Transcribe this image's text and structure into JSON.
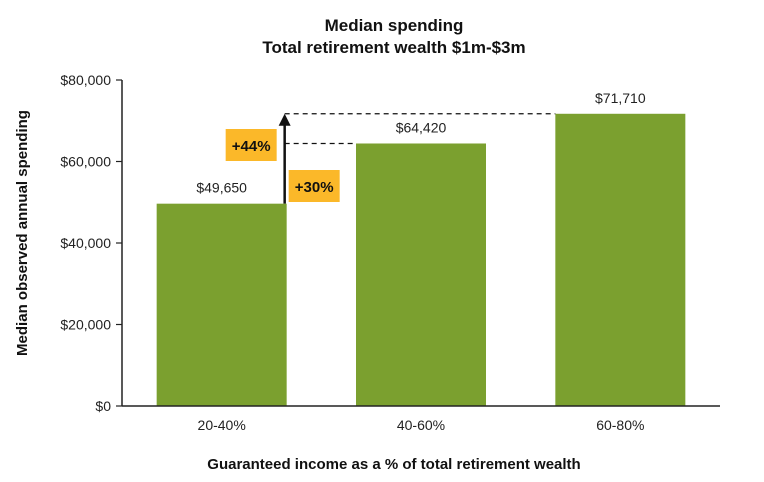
{
  "chart_data": {
    "type": "bar",
    "title": "Median spending",
    "subtitle": "Total retirement wealth $1m-$3m",
    "xlabel": "Guaranteed income as a % of total retirement wealth",
    "ylabel": "Median observed annual spending",
    "categories": [
      "20-40%",
      "40-60%",
      "60-80%"
    ],
    "values": [
      49650,
      64420,
      71710
    ],
    "value_labels": [
      "$49,650",
      "$64,420",
      "$71,710"
    ],
    "ylim": [
      0,
      80000
    ],
    "yticks": [
      0,
      20000,
      40000,
      60000,
      80000
    ],
    "ytick_labels": [
      "$0",
      "$20,000",
      "$40,000",
      "$60,000",
      "$80,000"
    ],
    "grid": false,
    "bar_color": "#7BA02F",
    "annotations": [
      {
        "text": "+44%",
        "from_value": 49650,
        "to_value": 71710,
        "color": "#FBB829"
      },
      {
        "text": "+30%",
        "from_value": 49650,
        "to_value": 64420,
        "color": "#FBB829"
      }
    ]
  }
}
